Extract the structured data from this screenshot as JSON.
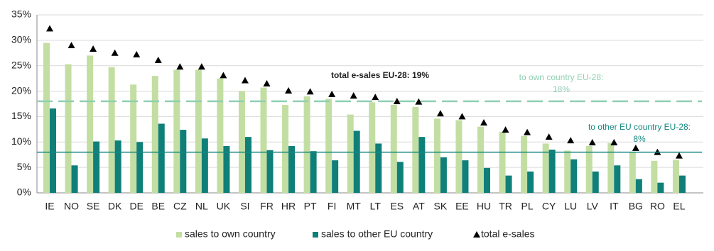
{
  "chart_data": {
    "type": "bar",
    "categories": [
      "IE",
      "NO",
      "SE",
      "DK",
      "DE",
      "BE",
      "CZ",
      "NL",
      "UK",
      "SI",
      "FR",
      "HR",
      "PT",
      "FI",
      "MT",
      "LT",
      "ES",
      "AT",
      "SK",
      "EE",
      "HU",
      "TR",
      "PL",
      "CY",
      "LU",
      "LV",
      "IT",
      "BG",
      "RO",
      "EL"
    ],
    "series": [
      {
        "name": "sales to own country",
        "color": "#c3dea2",
        "kind": "bar",
        "values": [
          29.5,
          25.3,
          27,
          24.7,
          21.3,
          23,
          24.2,
          24.2,
          22.5,
          20,
          20.7,
          17.3,
          19,
          18.5,
          15.4,
          17.8,
          17.3,
          16.9,
          14.6,
          14.3,
          13,
          12,
          11.2,
          9.7,
          8.3,
          9.2,
          9.8,
          8,
          6.3,
          6.5
        ]
      },
      {
        "name": "sales to other EU country",
        "color": "#0f7f79",
        "kind": "bar",
        "values": [
          16.6,
          5.4,
          10.1,
          10.3,
          10,
          13.6,
          12.4,
          10.7,
          9.2,
          11,
          8.4,
          9.2,
          8.2,
          6.4,
          12.2,
          9.7,
          6.1,
          11,
          7,
          6.4,
          4.9,
          3.4,
          4.2,
          8.5,
          6.6,
          4.2,
          5.4,
          2.7,
          2,
          3.4
        ]
      },
      {
        "name": "total e-sales",
        "color": "#000000",
        "kind": "triangle",
        "values": [
          32.3,
          29,
          28.3,
          27.5,
          27.2,
          26.1,
          24.8,
          24.8,
          23.1,
          22.1,
          21.5,
          20.1,
          19.9,
          19.4,
          19.1,
          18.8,
          18,
          17.9,
          15.6,
          15,
          13.8,
          12.4,
          11.9,
          11,
          10.3,
          9.9,
          9.9,
          8.8,
          8,
          7.3
        ]
      }
    ],
    "ylim": [
      0,
      35
    ],
    "yticks": [
      {
        "value": 0,
        "label": "0%"
      },
      {
        "value": 5,
        "label": "5%"
      },
      {
        "value": 10,
        "label": "10%"
      },
      {
        "value": 15,
        "label": "15%"
      },
      {
        "value": 20,
        "label": "20%"
      },
      {
        "value": 25,
        "label": "25%"
      },
      {
        "value": 30,
        "label": "30%"
      },
      {
        "value": 35,
        "label": "35%"
      }
    ],
    "grid": true,
    "reference_lines": [
      {
        "value": 18,
        "color": "#8fcfb2",
        "style": "dashed",
        "label": [
          "to own country EU-28:",
          "18%"
        ]
      },
      {
        "value": 8,
        "color": "#17877f",
        "style": "solid",
        "label": [
          "to other EU country EU-28:",
          "8%"
        ]
      }
    ],
    "annotation": "total e-sales EU-28: 19%",
    "legend": "bottom"
  }
}
